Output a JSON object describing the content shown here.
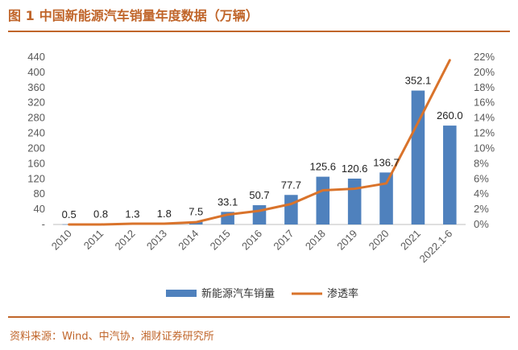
{
  "figure": {
    "number": "图 1",
    "title": "中国新能源汽车销量年度数据（万辆）",
    "source": "资料来源：Wind、中汽协，湘财证券研究所"
  },
  "chart_data": {
    "type": "bar",
    "categories": [
      "2010",
      "2011",
      "2012",
      "2013",
      "2014",
      "2015",
      "2016",
      "2017",
      "2018",
      "2019",
      "2020",
      "2021",
      "2022.1-6"
    ],
    "series": [
      {
        "name": "新能源汽车销量",
        "kind": "bar",
        "axis": "left",
        "color": "#4F81BD",
        "values": [
          0.5,
          0.8,
          1.3,
          1.8,
          7.5,
          33.1,
          50.7,
          77.7,
          125.6,
          120.6,
          136.7,
          352.1,
          260.0
        ],
        "labels": [
          "0.5",
          "0.8",
          "1.3",
          "1.8",
          "7.5",
          "33.1",
          "50.7",
          "77.7",
          "125.6",
          "120.6",
          "136.7",
          "352.1",
          "260.0"
        ]
      },
      {
        "name": "渗透率",
        "kind": "line",
        "axis": "right",
        "color": "#D9732B",
        "values": [
          0.0,
          0.0,
          0.1,
          0.1,
          0.3,
          1.3,
          1.8,
          2.7,
          4.5,
          4.7,
          5.4,
          13.4,
          21.6
        ]
      }
    ],
    "y_left": {
      "min": 0,
      "max": 440,
      "ticks": [
        0,
        40,
        80,
        120,
        160,
        200,
        240,
        280,
        320,
        360,
        400,
        440
      ],
      "tick_labels": [
        "-",
        "40",
        "80",
        "120",
        "160",
        "200",
        "240",
        "280",
        "320",
        "360",
        "400",
        "440"
      ]
    },
    "y_right": {
      "min": 0,
      "max": 22,
      "ticks": [
        0,
        2,
        4,
        6,
        8,
        10,
        12,
        14,
        16,
        18,
        20,
        22
      ],
      "tick_labels": [
        "0%",
        "2%",
        "4%",
        "6%",
        "8%",
        "10%",
        "12%",
        "14%",
        "16%",
        "18%",
        "20%",
        "22%"
      ]
    },
    "grid": false,
    "legend_position": "bottom"
  }
}
